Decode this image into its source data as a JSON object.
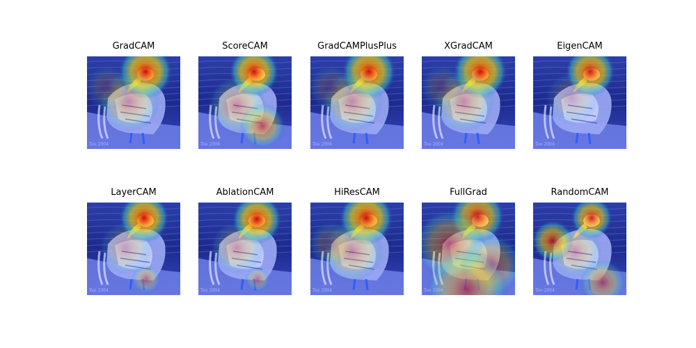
{
  "panels": [
    {
      "title": "GradCAM"
    },
    {
      "title": "ScoreCAM"
    },
    {
      "title": "GradCAMPlusPlus"
    },
    {
      "title": "XGradCAM"
    },
    {
      "title": "EigenCAM"
    },
    {
      "title": "LayerCAM"
    },
    {
      "title": "AblationCAM"
    },
    {
      "title": "HiResCAM"
    },
    {
      "title": "FullGrad"
    },
    {
      "title": "RandomCAM"
    }
  ]
}
